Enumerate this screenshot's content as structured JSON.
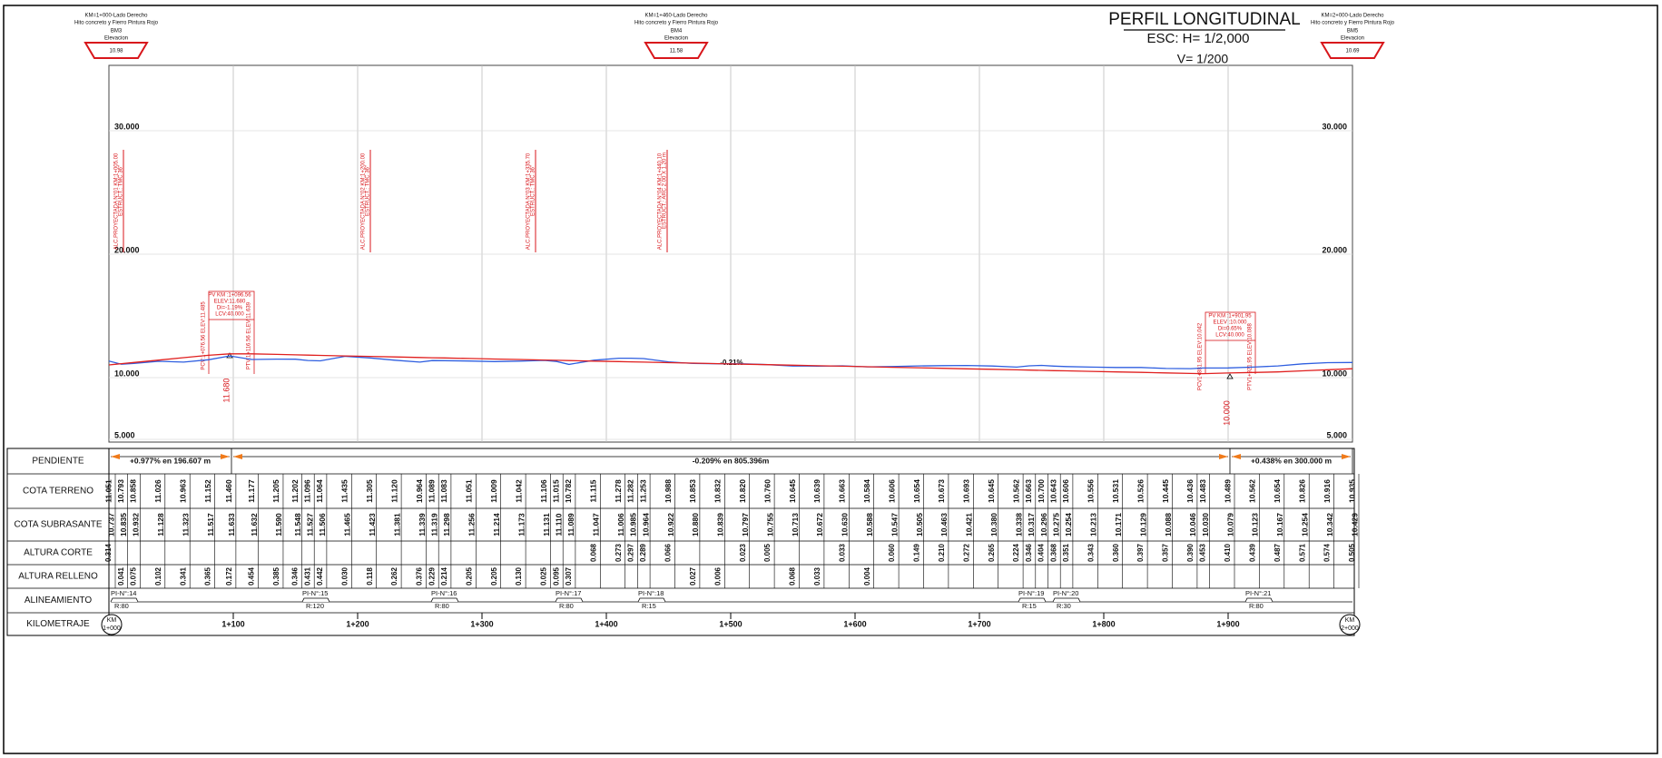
{
  "chart_data": {
    "type": "line",
    "title": "PERFIL LONGITUDINAL",
    "scale_h": "ESC: H= 1/2,000",
    "scale_v": "V= 1/200",
    "x": [
      0,
      10,
      20,
      40,
      60,
      80,
      97,
      115,
      135,
      150,
      160,
      170,
      190,
      210,
      230,
      250,
      260,
      270,
      290,
      310,
      330,
      350,
      360,
      370,
      390,
      410,
      420,
      430,
      450,
      470,
      490,
      510,
      530,
      550,
      570,
      590,
      610,
      630,
      650,
      670,
      690,
      710,
      730,
      740,
      750,
      760,
      770,
      790,
      810,
      830,
      850,
      870,
      880,
      900,
      920,
      940,
      960,
      980,
      1000
    ],
    "xlim": [
      0,
      1000
    ],
    "xticks": [
      {
        "value": 0,
        "label": "1+000"
      },
      {
        "value": 100,
        "label": "1+100"
      },
      {
        "value": 200,
        "label": "1+200"
      },
      {
        "value": 300,
        "label": "1+300"
      },
      {
        "value": 400,
        "label": "1+400"
      },
      {
        "value": 500,
        "label": "1+500"
      },
      {
        "value": 600,
        "label": "1+600"
      },
      {
        "value": 700,
        "label": "1+700"
      },
      {
        "value": 800,
        "label": "1+800"
      },
      {
        "value": 900,
        "label": "1+900"
      },
      {
        "value": 1000,
        "label": "2+000"
      }
    ],
    "km_mark": "KM",
    "ylim": [
      5,
      35
    ],
    "yticks": [
      {
        "value": 5,
        "label": "5.000"
      },
      {
        "value": 10,
        "label": "10.000"
      },
      {
        "value": 20,
        "label": "20.000"
      },
      {
        "value": 30,
        "label": "30.000"
      }
    ],
    "grid": true,
    "series": [
      {
        "name": "COTA TERRENO",
        "color": "#2f5fe0",
        "values": [
          11.051,
          10.793,
          10.858,
          11.026,
          10.963,
          11.152,
          11.46,
          11.177,
          11.205,
          11.202,
          11.096,
          11.064,
          11.435,
          11.305,
          11.12,
          10.964,
          11.089,
          11.083,
          11.051,
          11.009,
          11.042,
          11.106,
          11.015,
          10.782,
          11.115,
          11.278,
          11.282,
          11.253,
          10.988,
          10.853,
          10.832,
          10.82,
          10.76,
          10.645,
          10.639,
          10.663,
          10.584,
          10.606,
          10.654,
          10.673,
          10.693,
          10.645,
          10.562,
          10.663,
          10.7,
          10.643,
          10.606,
          10.556,
          10.531,
          10.526,
          10.445,
          10.436,
          10.483,
          10.489,
          10.562,
          10.654,
          10.826,
          10.916,
          10.935
        ],
        "value_labels": [
          "11.051",
          "10.793",
          "10.858",
          "11.026",
          "10.963",
          "11.152",
          "11.460",
          "11.177",
          "11.205",
          "11.202",
          "11.096",
          "11.064",
          "11.435",
          "11.305",
          "11.120",
          "10.964",
          "11.089",
          "11.083",
          "11.051",
          "11.009",
          "11.042",
          "11.106",
          "11.015",
          "10.782",
          "11.115",
          "11.278",
          "11.282",
          "11.253",
          "10.988",
          "10.853",
          "10.832",
          "10.820",
          "10.760",
          "10.645",
          "10.639",
          "10.663",
          "10.584",
          "10.606",
          "10.654",
          "10.673",
          "10.693",
          "10.645",
          "10.562",
          "10.663",
          "10.700",
          "10.643",
          "10.606",
          "10.556",
          "10.531",
          "10.526",
          "10.445",
          "10.436",
          "10.483",
          "10.489",
          "10.562",
          "10.654",
          "10.826",
          "10.916",
          "10.935"
        ]
      },
      {
        "name": "COTA SUBRASANTE",
        "color": "#e0201f",
        "values": [
          10.737,
          10.835,
          10.932,
          11.128,
          11.323,
          11.517,
          11.633,
          11.632,
          11.59,
          11.548,
          11.527,
          11.506,
          11.465,
          11.423,
          11.381,
          11.339,
          11.319,
          11.298,
          11.256,
          11.214,
          11.173,
          11.131,
          11.11,
          11.089,
          11.047,
          11.006,
          10.985,
          10.964,
          10.922,
          10.88,
          10.839,
          10.797,
          10.755,
          10.713,
          10.672,
          10.63,
          10.588,
          10.547,
          10.505,
          10.463,
          10.421,
          10.38,
          10.338,
          10.317,
          10.296,
          10.275,
          10.254,
          10.213,
          10.171,
          10.129,
          10.088,
          10.046,
          10.03,
          10.079,
          10.123,
          10.167,
          10.254,
          10.342,
          10.429
        ],
        "value_labels": [
          "10.737",
          "10.835",
          "10.932",
          "11.128",
          "11.323",
          "11.517",
          "11.633",
          "11.632",
          "11.590",
          "11.548",
          "11.527",
          "11.506",
          "11.465",
          "11.423",
          "11.381",
          "11.339",
          "11.319",
          "11.298",
          "11.256",
          "11.214",
          "11.173",
          "11.131",
          "11.110",
          "11.089",
          "11.047",
          "11.006",
          "10.985",
          "10.964",
          "10.922",
          "10.880",
          "10.839",
          "10.797",
          "10.755",
          "10.713",
          "10.672",
          "10.630",
          "10.588",
          "10.547",
          "10.505",
          "10.463",
          "10.421",
          "10.380",
          "10.338",
          "10.317",
          "10.296",
          "10.275",
          "10.254",
          "10.213",
          "10.171",
          "10.129",
          "10.088",
          "10.046",
          "10.030",
          "10.079",
          "10.123",
          "10.167",
          "10.254",
          "10.342",
          "10.429"
        ]
      }
    ],
    "row_labels": {
      "grade": "PENDIENTE",
      "cut": "ALTURA CORTE",
      "fill": "ALTURA RELLENO",
      "alignment": "ALINEAMIENTO",
      "km": "KILOMETRAJE"
    },
    "cut_heights": [
      "0.314",
      null,
      null,
      null,
      null,
      null,
      null,
      null,
      null,
      null,
      null,
      null,
      null,
      null,
      null,
      null,
      null,
      null,
      null,
      null,
      null,
      null,
      null,
      null,
      "0.068",
      "0.273",
      "0.297",
      "0.289",
      "0.066",
      null,
      null,
      "0.023",
      "0.005",
      null,
      null,
      "0.033",
      null,
      "0.060",
      "0.149",
      "0.210",
      "0.272",
      "0.265",
      "0.224",
      "0.346",
      "0.404",
      "0.368",
      "0.351",
      "0.343",
      "0.360",
      "0.397",
      "0.357",
      "0.390",
      "0.453",
      "0.410",
      "0.439",
      "0.487",
      "0.571",
      "0.574",
      "0.505"
    ],
    "fill_heights": [
      null,
      "0.041",
      "0.075",
      "0.102",
      "0.341",
      "0.365",
      "0.172",
      "0.454",
      "0.385",
      "0.346",
      "0.431",
      "0.442",
      "0.030",
      "0.118",
      "0.262",
      "0.376",
      "0.229",
      "0.214",
      "0.205",
      "0.205",
      "0.130",
      "0.025",
      "0.095",
      "0.307",
      null,
      null,
      null,
      null,
      null,
      "0.027",
      "0.006",
      null,
      null,
      "0.068",
      "0.033",
      null,
      "0.004",
      null,
      null,
      null,
      null,
      null,
      null,
      null,
      null,
      null,
      null,
      null,
      null,
      null,
      null,
      null,
      null,
      null,
      null,
      null,
      null,
      null,
      null
    ],
    "grades": [
      "+0.977% en 196.607 m",
      "-0.209% en 805.396m",
      "+0.438% en 300.000 m"
    ],
    "curves": [
      {
        "pi": "PI-N°:14",
        "r": "R:80"
      },
      {
        "pi": "PI-N°:15",
        "r": "R:120"
      },
      {
        "pi": "PI-N°:16",
        "r": "R:80"
      },
      {
        "pi": "PI-N°:17",
        "r": "R:80"
      },
      {
        "pi": "PI-N°:18",
        "r": "R:15"
      },
      {
        "pi": "PI-N°:19",
        "r": "R:15"
      },
      {
        "pi": "PI-N°:20",
        "r": "R:30"
      },
      {
        "pi": "PI-N°:21",
        "r": "R:80"
      }
    ],
    "benchmarks": [
      {
        "location": "KM=1+000-Lado Derecho",
        "desc": "Hito concreto y Fierro Pintura Rojo",
        "name": "BM3",
        "label": "Elevacion",
        "elev": "10.98"
      },
      {
        "location": "KM=1+460-Lado Derecho",
        "desc": "Hito concreto y Fierro Pintura Rojo",
        "name": "BM4",
        "label": "Elevacion",
        "elev": "11.58"
      },
      {
        "location": "KM=2+000-Lado Derecho",
        "desc": "Hito concreto y Fierro Pintura Rojo",
        "name": "BM5",
        "label": "Elevacion",
        "elev": "10.69"
      }
    ],
    "structures": [
      {
        "line1": "ALC.PROYECTADA N°01 KM:1+005.00",
        "line2": "ESTRUCT.: TMC 36\""
      },
      {
        "line1": "ALC.PROYECTADA N°02 KM:1+200.00",
        "line2": "ESTRUCT.: TMC 36\""
      },
      {
        "line1": "ALC.PROYECTADA N°03 KM:1+335.70",
        "line2": "ESTRUCT.: TMC 36\""
      },
      {
        "line1": "ALC.PROYECTADA N°04 KM:1+440.10",
        "line2": "ESTRUCT.: ARC 2.00 X 1.20 m"
      }
    ],
    "vertical_curves": [
      {
        "pv": "PV KM :1+096.56",
        "elev": "ELEV:11.680",
        "di": "Di=-1.19%",
        "lcv": "LCV:40.000",
        "pcv": "PCV:1+076.56 ELEV:11.485",
        "ptv": "PTV:1+116.56 ELEV:11.639",
        "level": "11.680"
      },
      {
        "pv": "PV KM :1+901.95",
        "elev": "ELEV :10.000",
        "di": "Di=0.65%",
        "lcv": "LCV:40.000",
        "pcv": "PCV1+881.95 ELEV:10.042",
        "ptv": "PTV1+921.95 ELEV:10.088",
        "level": "10.000"
      }
    ],
    "slope_note": "-0.21%"
  }
}
